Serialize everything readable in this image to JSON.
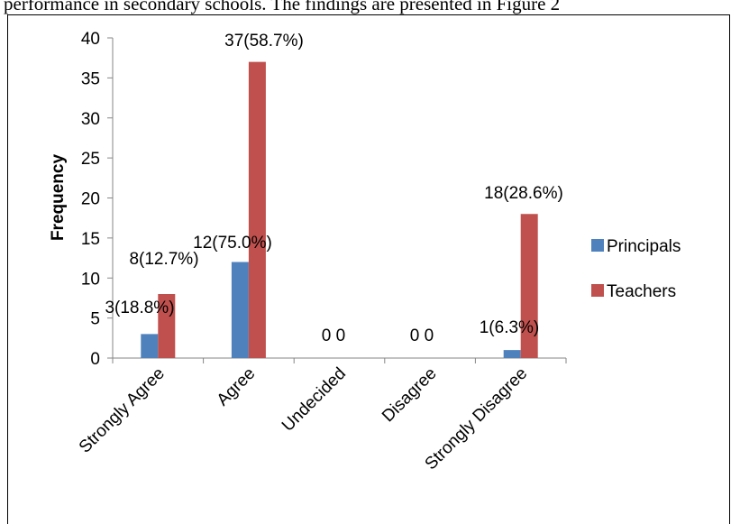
{
  "caption": "performance in secondary schools. The findings are presented in Figure 2",
  "chart_data": {
    "type": "bar",
    "categories": [
      "Strongly Agree",
      "Agree",
      "Undecided",
      "Disagree",
      "Strongly Disagree"
    ],
    "series": [
      {
        "name": "Principals",
        "color": "#4F81BD",
        "values": [
          3,
          12,
          0,
          0,
          1
        ],
        "labels": [
          "3(18.8%)",
          "12(75.0%)",
          "0",
          "0",
          "1(6.3%)"
        ]
      },
      {
        "name": "Teachers",
        "color": "#C0504D",
        "values": [
          8,
          37,
          0,
          0,
          18
        ],
        "labels": [
          "8(12.7%)",
          "37(58.7%)",
          "0",
          "0",
          "18(28.6%)"
        ]
      }
    ],
    "ylabel": "Frequency",
    "xlabel": "",
    "ylim": [
      0,
      40
    ],
    "yticks": [
      0,
      5,
      10,
      15,
      20,
      25,
      30,
      35,
      40
    ],
    "grid": false,
    "legend": "right"
  }
}
